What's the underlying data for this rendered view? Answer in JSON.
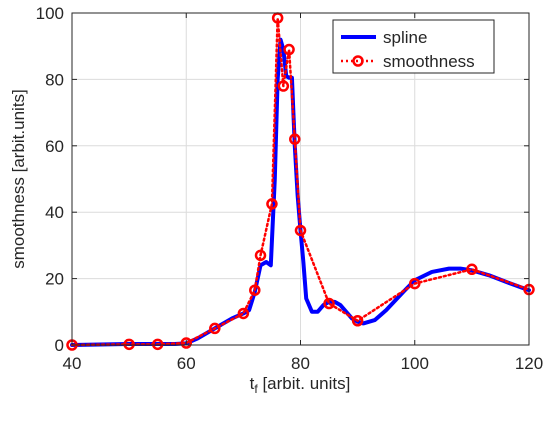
{
  "chart_data": {
    "type": "line",
    "xlabel": "t",
    "xlabel_sub": "f",
    "xlabel_suffix": " [arbit. units]",
    "ylabel": "smoothness [arbit.units]",
    "xlim": [
      40,
      120
    ],
    "ylim": [
      0,
      100
    ],
    "x_ticks": [
      40,
      60,
      80,
      100,
      120
    ],
    "y_ticks": [
      0,
      20,
      40,
      60,
      80,
      100
    ],
    "grid": true,
    "legend_position": "top-right",
    "series": [
      {
        "name": "spline",
        "color": "#0000ff",
        "style": "solid",
        "marker": "none",
        "x": [
          40,
          50,
          55,
          58,
          60,
          62,
          65,
          68,
          70,
          71,
          72,
          73,
          74,
          74.8,
          75.5,
          76,
          76.5,
          77,
          77.5,
          78,
          78.5,
          79,
          79.5,
          80,
          80.5,
          81,
          82,
          83,
          84,
          85,
          86,
          87,
          88,
          89,
          90,
          91,
          93,
          95,
          98,
          100,
          103,
          106,
          108,
          110,
          113,
          116,
          120
        ],
        "y": [
          0,
          0.3,
          0.3,
          0.3,
          0.5,
          2,
          5,
          8,
          9.5,
          10.5,
          16,
          24,
          25,
          24,
          50,
          80,
          92,
          89,
          81,
          80.5,
          80.5,
          60,
          45,
          34.5,
          25,
          14,
          10,
          10,
          12,
          13,
          13,
          12,
          10,
          8,
          7,
          6.5,
          7.5,
          10.5,
          16,
          19.5,
          22,
          23,
          23,
          22.5,
          21,
          19,
          16.5
        ]
      },
      {
        "name": "smoothness",
        "color": "#ff0000",
        "style": "dotted",
        "marker": "circle",
        "x": [
          40,
          50,
          55,
          60,
          65,
          70,
          72,
          73,
          75,
          76,
          77,
          78,
          79,
          80,
          85,
          90,
          100,
          110,
          120
        ],
        "y": [
          0,
          0.2,
          0.2,
          0.6,
          5,
          9.5,
          16.5,
          27,
          42.5,
          98.5,
          78,
          89,
          62,
          34.5,
          12.5,
          7.3,
          18.5,
          22.8,
          16.7
        ]
      }
    ]
  }
}
